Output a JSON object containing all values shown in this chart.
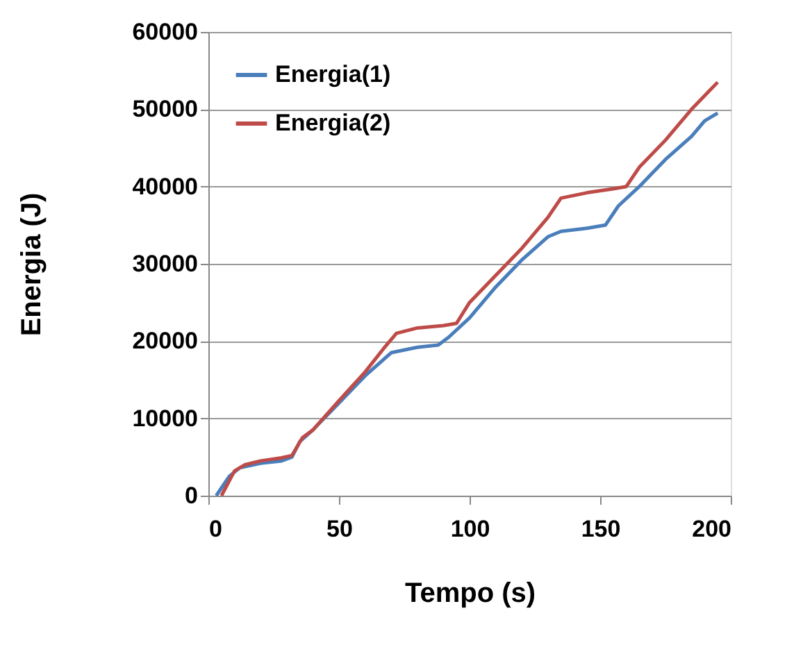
{
  "chart_data": {
    "type": "line",
    "xlabel": "Tempo (s)",
    "ylabel": "Energia (J)",
    "xlim": [
      0,
      200
    ],
    "xticks": [
      0,
      50,
      100,
      150,
      200
    ],
    "ylim": [
      0,
      60000
    ],
    "yticks": [
      0,
      10000,
      20000,
      30000,
      40000,
      50000,
      60000
    ],
    "grid": "y",
    "legend": "top left",
    "marker": "none",
    "line_style": "solid",
    "series": [
      {
        "name": "Energia(1)",
        "color": "#4a7ebb",
        "x": [
          3,
          8,
          12,
          20,
          28,
          32,
          35,
          40,
          50,
          60,
          70,
          80,
          88,
          92,
          100,
          110,
          120,
          130,
          135,
          145,
          152,
          157,
          165,
          175,
          185,
          190,
          195
        ],
        "values": [
          0,
          2500,
          3600,
          4200,
          4500,
          5000,
          7000,
          8500,
          12000,
          15500,
          18500,
          19200,
          19500,
          20500,
          23000,
          27000,
          30500,
          33500,
          34200,
          34600,
          35000,
          37500,
          40000,
          43500,
          46500,
          48500,
          49500
        ]
      },
      {
        "name": "Energia(2)",
        "color": "#be4b48",
        "x": [
          5,
          10,
          14,
          20,
          28,
          32,
          36,
          40,
          50,
          60,
          67,
          72,
          80,
          90,
          95,
          100,
          110,
          120,
          130,
          135,
          145,
          155,
          160,
          165,
          175,
          185,
          195
        ],
        "values": [
          0,
          3200,
          4000,
          4500,
          4900,
          5200,
          7500,
          8500,
          12300,
          16000,
          19000,
          21000,
          21700,
          22000,
          22300,
          25000,
          28500,
          32000,
          36000,
          38500,
          39200,
          39700,
          40000,
          42500,
          46000,
          50000,
          53500
        ]
      }
    ]
  }
}
